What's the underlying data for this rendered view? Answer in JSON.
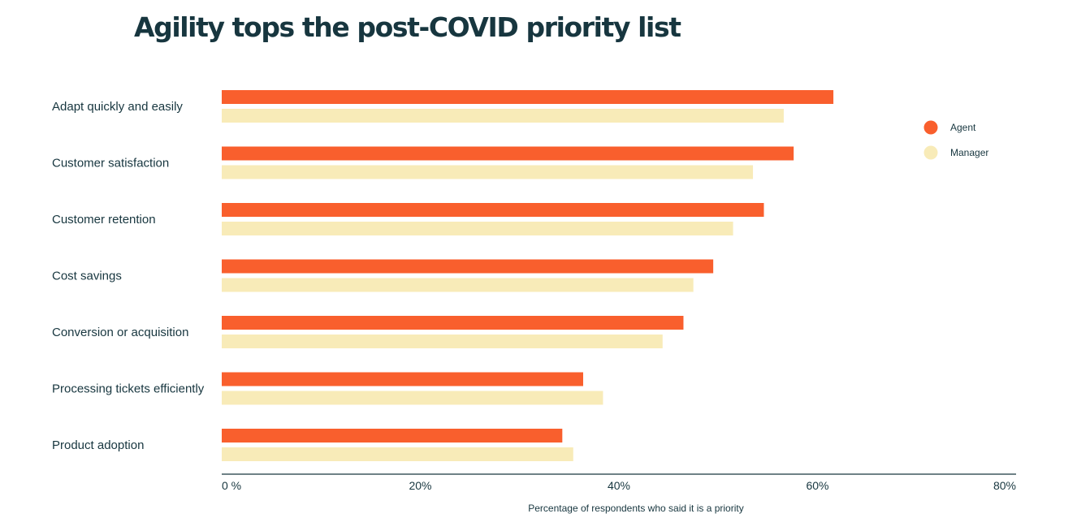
{
  "chart_data": {
    "type": "bar",
    "orientation": "horizontal",
    "title": "Agility tops the post-COVID priority list",
    "xlabel": "Percentage of respondents who said it is a priority",
    "ylabel": "",
    "categories": [
      "Adapt quickly and easily",
      "Customer satisfaction",
      "Customer retention",
      "Cost savings",
      "Conversion or acquisition",
      "Processing tickets efficiently",
      "Product adoption"
    ],
    "series": [
      {
        "name": "Agent",
        "color": "#f95f2d",
        "values": [
          61.6,
          57.6,
          54.6,
          49.5,
          46.5,
          36.4,
          34.3
        ]
      },
      {
        "name": "Manager",
        "color": "#f8ebb8",
        "values": [
          56.6,
          53.5,
          51.5,
          47.5,
          44.4,
          38.4,
          35.4
        ]
      }
    ],
    "xlim": [
      0,
      80
    ],
    "xticks": [
      0,
      20,
      40,
      60,
      80
    ],
    "xtick_labels": [
      "0 %",
      "20%",
      "40%",
      "60%",
      "80%"
    ],
    "grid": false,
    "legend_position": "top-right"
  }
}
